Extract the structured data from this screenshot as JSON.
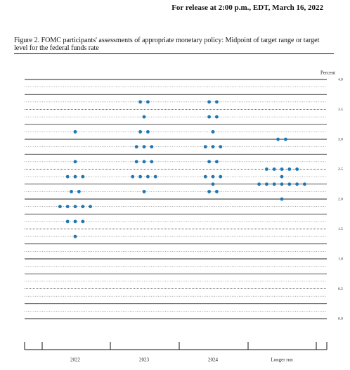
{
  "header": "For release at 2:00 p.m., EDT, March 16, 2022",
  "chart_data": {
    "type": "dot",
    "title": "Figure 2.  FOMC participants' assessments of appropriate monetary policy: Midpoint of target range or target level for the federal funds rate",
    "y_label": "Percent",
    "categories": [
      "2022",
      "2023",
      "2024",
      "Longer run"
    ],
    "values": [
      [
        3.125,
        2.625,
        2.375,
        2.375,
        2.375,
        2.125,
        2.125,
        1.875,
        1.875,
        1.875,
        1.875,
        1.875,
        1.625,
        1.625,
        1.625,
        1.375
      ],
      [
        3.625,
        3.625,
        3.375,
        3.125,
        3.125,
        2.875,
        2.875,
        2.875,
        2.625,
        2.625,
        2.625,
        2.375,
        2.375,
        2.375,
        2.375,
        2.125
      ],
      [
        3.625,
        3.625,
        3.375,
        3.375,
        3.125,
        2.875,
        2.875,
        2.875,
        2.625,
        2.625,
        2.375,
        2.375,
        2.375,
        2.25,
        2.125,
        2.125
      ],
      [
        3.0,
        3.0,
        2.5,
        2.5,
        2.5,
        2.5,
        2.5,
        2.375,
        2.25,
        2.25,
        2.25,
        2.25,
        2.25,
        2.25,
        2.25,
        2.0
      ]
    ],
    "color": "#1f77b4",
    "ylim": [
      0,
      4
    ],
    "yticks": [
      {
        "value": 0,
        "label": "0.0"
      },
      {
        "value": 0.5,
        "label": "0.5"
      },
      {
        "value": 1,
        "label": "1.0"
      },
      {
        "value": 1.5,
        "label": "1.5"
      },
      {
        "value": 2,
        "label": "2.0"
      },
      {
        "value": 2.5,
        "label": "2.5"
      },
      {
        "value": 3,
        "label": "3.0"
      },
      {
        "value": 3.5,
        "label": "3.5"
      },
      {
        "value": 4,
        "label": "4.0"
      }
    ]
  }
}
